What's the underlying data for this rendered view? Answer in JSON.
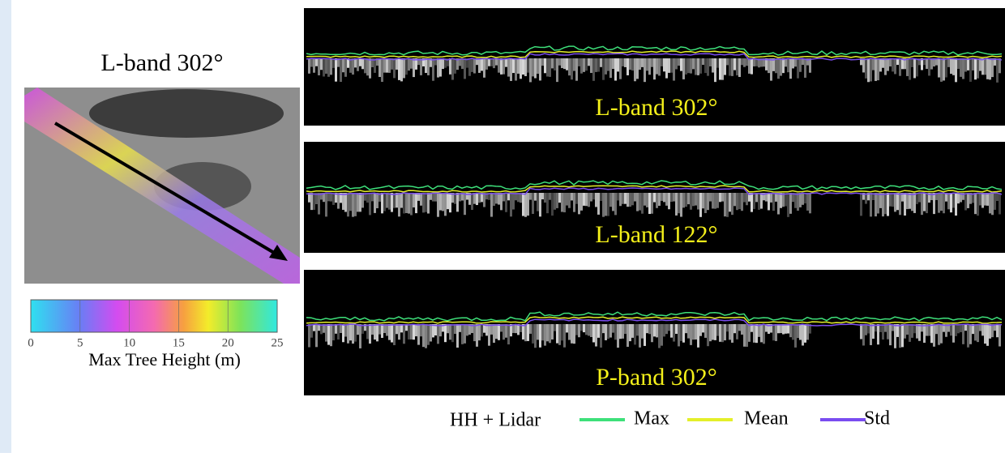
{
  "figure": {
    "map_title": "L-band 302°",
    "colorbar": {
      "label": "Max Tree Height (m)",
      "lim": [
        0,
        25
      ],
      "ticks": [
        0,
        5,
        10,
        15,
        20,
        25
      ]
    },
    "panels": [
      {
        "label": "L-band 302°"
      },
      {
        "label": "L-band 122°"
      },
      {
        "label": "P-band 302°"
      }
    ],
    "legend": {
      "prefix": "HH + Lidar",
      "items": [
        {
          "name": "Max",
          "color": "#3ee07a"
        },
        {
          "name": "Mean",
          "color": "#e4ef2a"
        },
        {
          "name": "Std",
          "color": "#7a4cf0"
        }
      ]
    }
  }
}
